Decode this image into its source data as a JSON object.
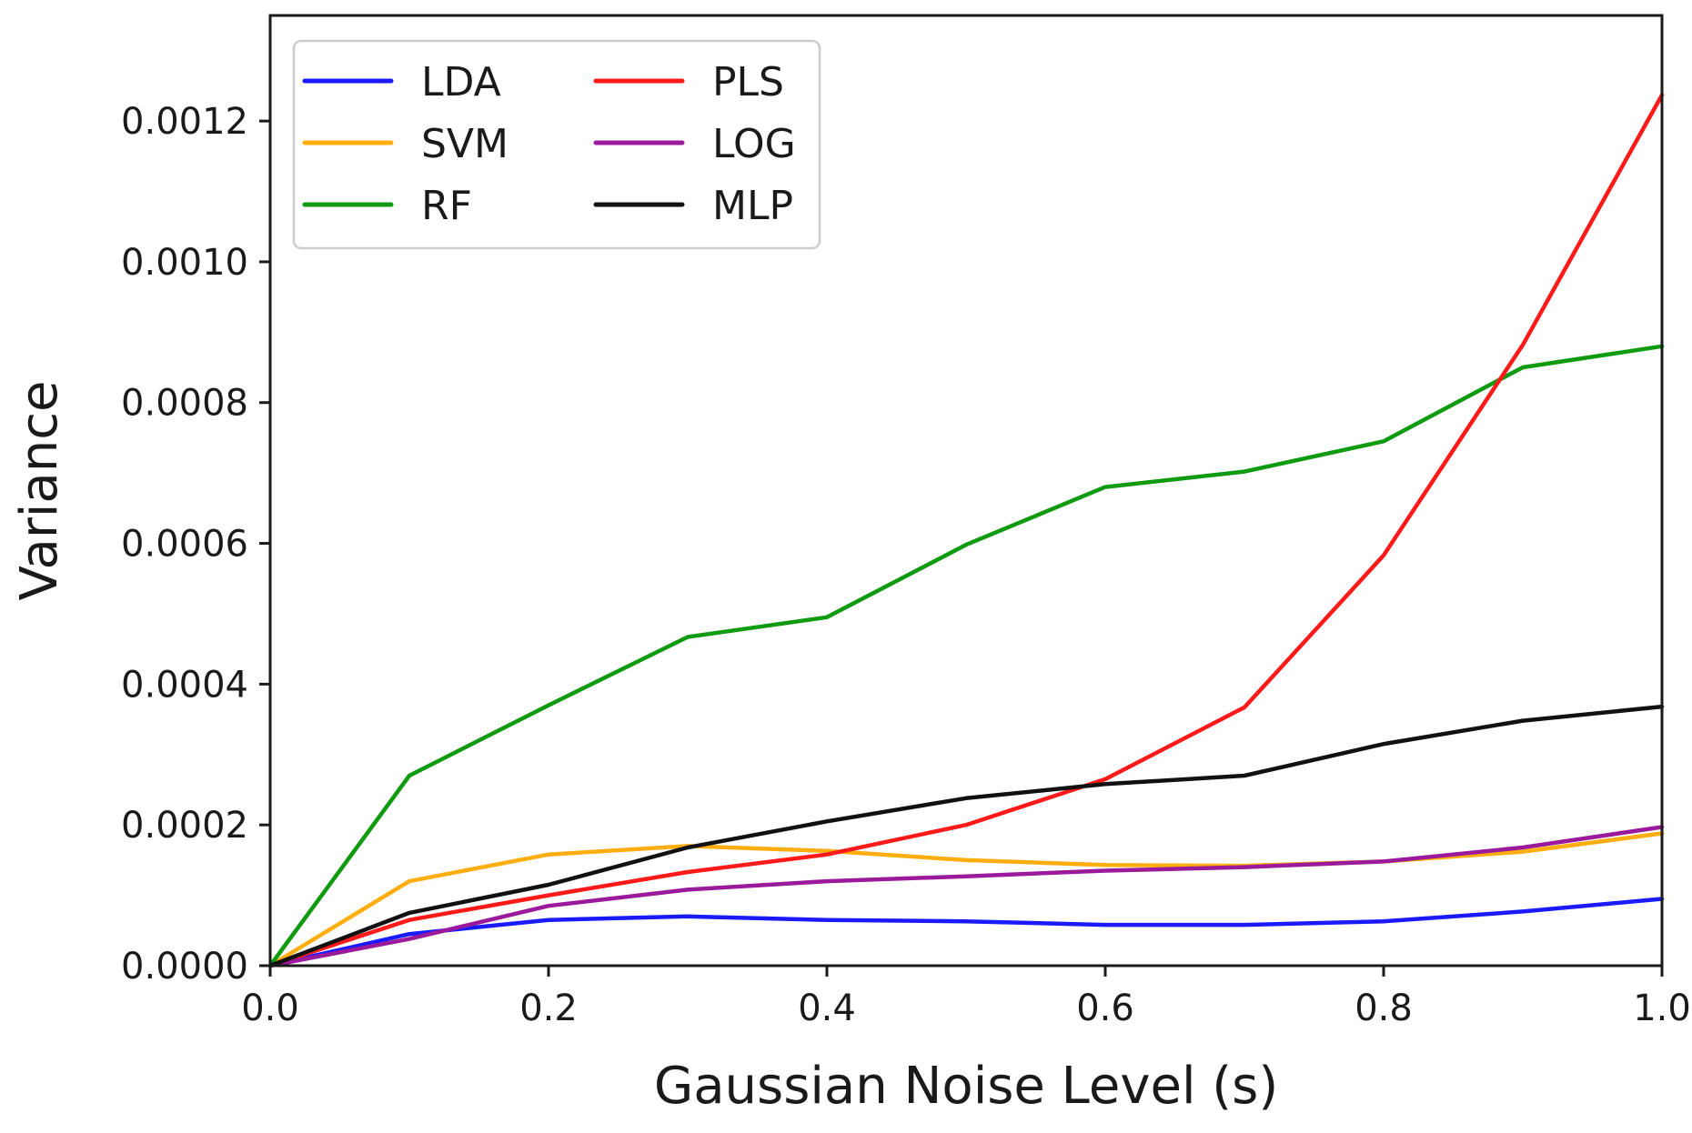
{
  "chart_data": {
    "type": "line",
    "title": "",
    "xlabel": "Gaussian Noise Level (s)",
    "ylabel": "Variance",
    "xlim": [
      0.0,
      1.0
    ],
    "ylim": [
      0.0,
      0.00135
    ],
    "grid": false,
    "legend_position": "top-left",
    "legend_columns": 2,
    "xticks": [
      0.0,
      0.2,
      0.4,
      0.6,
      0.8,
      1.0
    ],
    "xtick_labels": [
      "0.0",
      "0.2",
      "0.4",
      "0.6",
      "0.8",
      "1.0"
    ],
    "yticks": [
      0.0,
      0.0002,
      0.0004,
      0.0006,
      0.0008,
      0.001,
      0.0012
    ],
    "ytick_labels": [
      "0.0000",
      "0.0002",
      "0.0004",
      "0.0006",
      "0.0008",
      "0.0010",
      "0.0012"
    ],
    "x": [
      0.0,
      0.1,
      0.2,
      0.3,
      0.4,
      0.5,
      0.6,
      0.7,
      0.8,
      0.9,
      1.0
    ],
    "series": [
      {
        "name": "LDA",
        "color": "#1a1aff",
        "values": [
          0.0,
          4.5e-05,
          6.5e-05,
          7e-05,
          6.5e-05,
          6.3e-05,
          5.8e-05,
          5.8e-05,
          6.3e-05,
          7.7e-05,
          9.5e-05
        ]
      },
      {
        "name": "SVM",
        "color": "#ffad0f",
        "values": [
          0.0,
          0.00012,
          0.000158,
          0.00017,
          0.000163,
          0.00015,
          0.000143,
          0.000142,
          0.000148,
          0.000162,
          0.000188
        ]
      },
      {
        "name": "RF",
        "color": "#109a10",
        "values": [
          0.0,
          0.00027,
          0.00037,
          0.000467,
          0.000495,
          0.000598,
          0.00068,
          0.000702,
          0.000745,
          0.00085,
          0.00088
        ]
      },
      {
        "name": "PLS",
        "color": "#ff1a1a",
        "values": [
          0.0,
          6.5e-05,
          0.0001,
          0.000133,
          0.000158,
          0.0002,
          0.000265,
          0.000367,
          0.000583,
          0.000882,
          0.001237
        ]
      },
      {
        "name": "LOG",
        "color": "#9b1a9b",
        "values": [
          0.0,
          3.8e-05,
          8.5e-05,
          0.000108,
          0.00012,
          0.000127,
          0.000135,
          0.00014,
          0.000148,
          0.000168,
          0.000197
        ]
      },
      {
        "name": "MLP",
        "color": "#111111",
        "values": [
          0.0,
          7.5e-05,
          0.000115,
          0.000168,
          0.000205,
          0.000238,
          0.000258,
          0.00027,
          0.000315,
          0.000348,
          0.000368
        ]
      }
    ]
  }
}
